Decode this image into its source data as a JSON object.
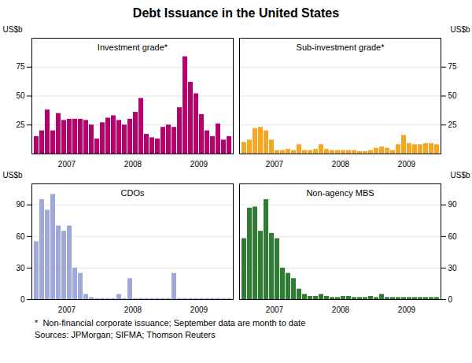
{
  "title": "Debt Issuance in the United States",
  "annotations": [
    "*  Non-financial corporate issuance; September data are month to date",
    "Sources: JPMorgan; SIFMA; Thomson Reuters"
  ],
  "chart_data": [
    {
      "type": "bar",
      "title": "Investment grade*",
      "categories": [
        null,
        null,
        null,
        null,
        null,
        null,
        "2007",
        null,
        null,
        null,
        null,
        null,
        null,
        null,
        null,
        null,
        null,
        null,
        "2008",
        null,
        null,
        null,
        null,
        null,
        null,
        null,
        null,
        null,
        null,
        null,
        "2009",
        null,
        null,
        null,
        null,
        null
      ],
      "values": [
        15,
        20,
        38,
        20,
        35,
        29,
        30,
        30,
        30,
        29,
        25,
        13,
        27,
        31,
        33,
        29,
        25,
        30,
        36,
        48,
        17,
        14,
        13,
        23,
        25,
        23,
        40,
        84,
        62,
        52,
        34,
        20,
        15,
        26,
        12,
        15
      ],
      "color": "#b5006e",
      "ylim": [
        0,
        100
      ],
      "yticks": [
        25,
        50,
        75
      ],
      "ylabel": "US$b",
      "grid": true
    },
    {
      "type": "bar",
      "title": "Sub-investment grade*",
      "categories": [
        null,
        null,
        null,
        null,
        null,
        null,
        "2007",
        null,
        null,
        null,
        null,
        null,
        null,
        null,
        null,
        null,
        null,
        null,
        "2008",
        null,
        null,
        null,
        null,
        null,
        null,
        null,
        null,
        null,
        null,
        null,
        "2009",
        null,
        null,
        null,
        null,
        null
      ],
      "values": [
        10,
        12,
        22,
        23,
        20,
        12,
        3,
        3,
        4,
        3,
        8,
        3,
        3,
        4,
        8,
        4,
        3,
        3,
        3,
        3,
        3,
        2,
        2,
        3,
        5,
        6,
        5,
        3,
        8,
        16,
        9,
        8,
        8,
        9,
        9,
        8
      ],
      "color": "#f5a623",
      "ylim": [
        0,
        100
      ],
      "yticks": [
        25,
        50,
        75
      ],
      "ylabel": "US$b",
      "grid": true
    },
    {
      "type": "bar",
      "title": "CDOs",
      "categories": [
        null,
        null,
        null,
        null,
        null,
        null,
        "2007",
        null,
        null,
        null,
        null,
        null,
        null,
        null,
        null,
        null,
        null,
        null,
        "2008",
        null,
        null,
        null,
        null,
        null,
        null,
        null,
        null,
        null,
        null,
        null,
        "2009",
        null,
        null,
        null,
        null,
        null
      ],
      "values": [
        55,
        95,
        85,
        100,
        70,
        65,
        70,
        30,
        25,
        5,
        2,
        1,
        1,
        1,
        1,
        5,
        1,
        20,
        1,
        1,
        1,
        1,
        1,
        1,
        1,
        25,
        1,
        1,
        1,
        1,
        1,
        1,
        1,
        1,
        1,
        1
      ],
      "color": "#9fa8da",
      "ylim": [
        0,
        110
      ],
      "yticks": [
        0,
        30,
        60,
        90
      ],
      "ylabel": "US$b",
      "grid": true
    },
    {
      "type": "bar",
      "title": "Non-agency MBS",
      "categories": [
        null,
        null,
        null,
        null,
        null,
        null,
        "2007",
        null,
        null,
        null,
        null,
        null,
        null,
        null,
        null,
        null,
        null,
        null,
        "2008",
        null,
        null,
        null,
        null,
        null,
        null,
        null,
        null,
        null,
        null,
        null,
        "2009",
        null,
        null,
        null,
        null,
        null
      ],
      "values": [
        58,
        87,
        88,
        65,
        95,
        63,
        58,
        30,
        25,
        20,
        10,
        5,
        3,
        3,
        5,
        3,
        2,
        2,
        3,
        3,
        2,
        2,
        2,
        3,
        2,
        5,
        2,
        2,
        2,
        2,
        2,
        2,
        2,
        2,
        2,
        2
      ],
      "color": "#2e7d32",
      "ylim": [
        0,
        110
      ],
      "yticks": [
        0,
        30,
        60,
        90
      ],
      "ylabel": "US$b",
      "grid": true
    }
  ]
}
